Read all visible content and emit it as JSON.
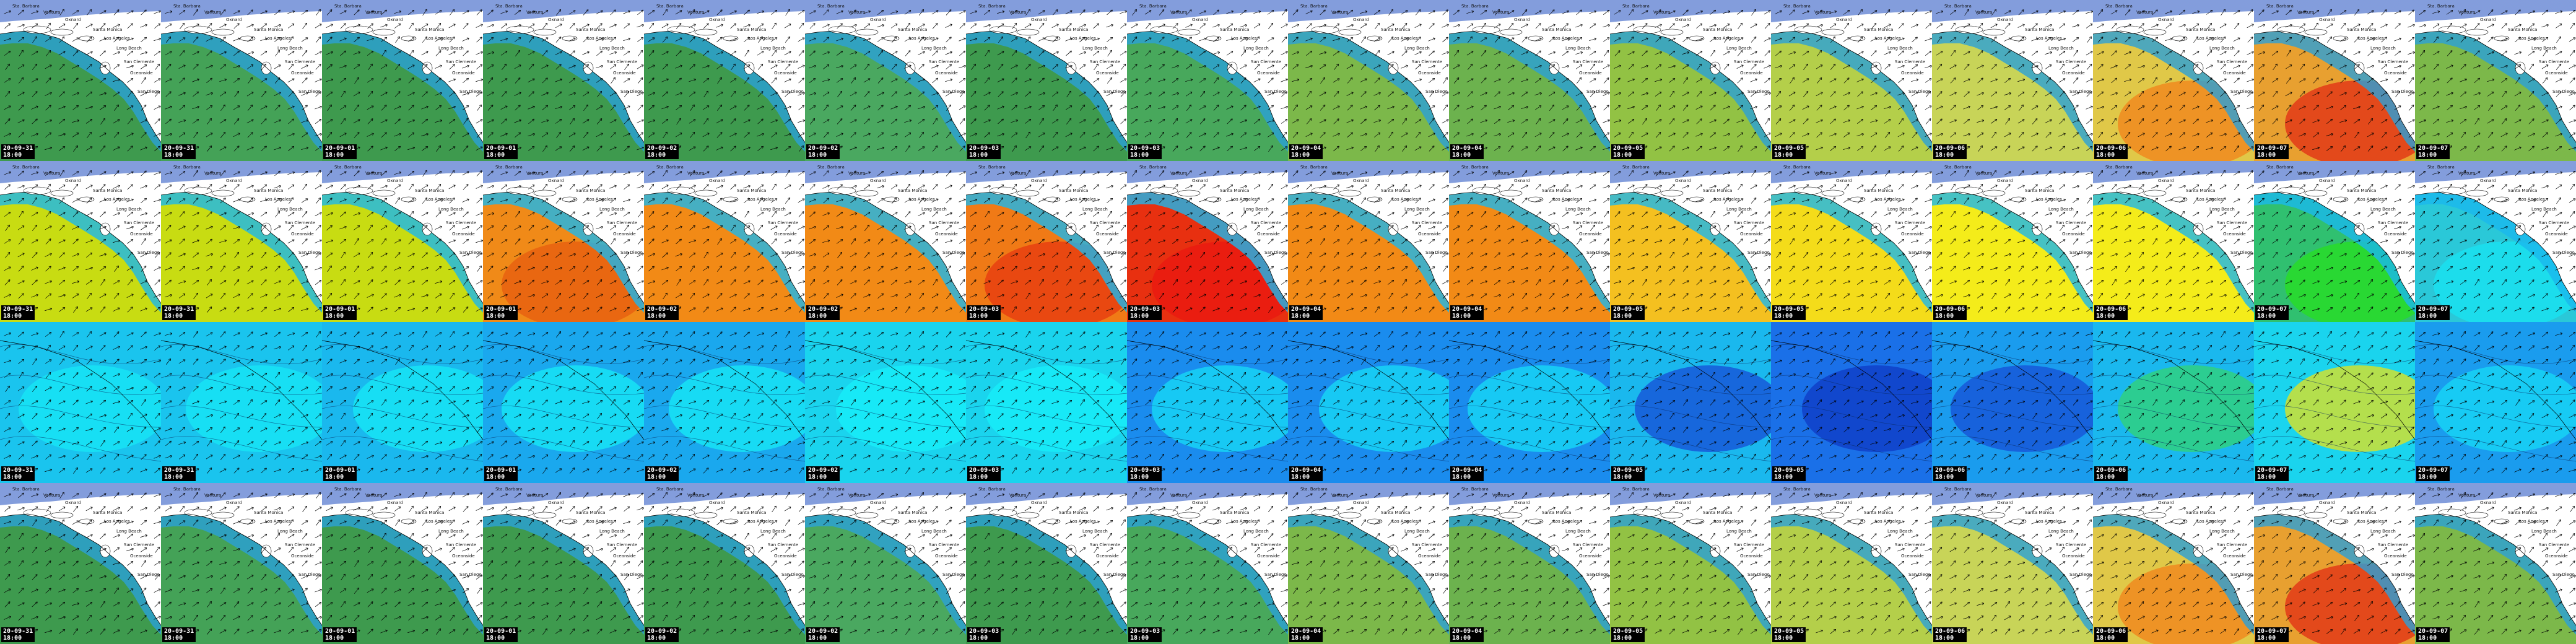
{
  "map": {
    "rows": [
      {
        "name": "row-1",
        "colors": [
          "#3e9a4e",
          "#44a257",
          "#3e9a4e",
          "#3e9a4e",
          "#3e9a4e",
          "#4aa860",
          "#3e9a4e",
          "#48a85c",
          "#7cb84a",
          "#6cb24e",
          "#92c244",
          "#b4cf4a",
          "#c8d458",
          "#e0c848",
          "#e8a030",
          "#7cb84a"
        ],
        "hot": [
          "",
          "",
          "",
          "",
          "",
          "",
          "",
          "",
          "",
          "",
          "",
          "",
          "",
          "#f08a20",
          "#e23a18",
          ""
        ]
      },
      {
        "name": "row-2",
        "colors": [
          "#c8dc12",
          "#c8dc12",
          "#c8dc12",
          "#f08a18",
          "#f28a16",
          "#f28a16",
          "#f07a16",
          "#e83010",
          "#f28a16",
          "#f28a16",
          "#f4c020",
          "#f4dc1a",
          "#f4ec1a",
          "#f4ec1a",
          "#30c070",
          "#2ac8d8"
        ],
        "hot": [
          "",
          "",
          "",
          "#e86010",
          "",
          "",
          "#e84010",
          "#ea1a10",
          "",
          "",
          "",
          "",
          "",
          "",
          "#28dc28",
          "#1ae0f0"
        ]
      },
      {
        "name": "row-3",
        "colors": [
          "#1ac4ee",
          "#1ac4ee",
          "#1ab8ee",
          "#1aa8ee",
          "#1aa8ee",
          "#1ad4ee",
          "#1ad4ee",
          "#1a8cee",
          "#1a8cee",
          "#1a8cee",
          "#1ab8ee",
          "#1a70e8",
          "#1a9cee",
          "#1ab8ee",
          "#1ad4ee",
          "#1a9cee"
        ],
        "hot": [
          "#18e4f4",
          "#18e4f4",
          "#18e4f4",
          "#18e4f4",
          "#18e4f4",
          "#18ecf8",
          "#18ecf8",
          "#18d4f4",
          "#18d4f4",
          "#18d4f4",
          "#1858d8",
          "#1040c8",
          "#1858d8",
          "#30d080",
          "#d0e030",
          "#18d4f4"
        ]
      },
      {
        "name": "row-4",
        "colors": [
          "#3e9a4e",
          "#44a257",
          "#3e9a4e",
          "#3e9a4e",
          "#3e9a4e",
          "#4aa860",
          "#3e9a4e",
          "#48a85c",
          "#7cb84a",
          "#6cb24e",
          "#92c244",
          "#b4cf4a",
          "#c8d458",
          "#e0c848",
          "#e8a030",
          "#7cb84a"
        ],
        "hot": [
          "",
          "",
          "",
          "",
          "",
          "",
          "",
          "",
          "",
          "",
          "",
          "",
          "",
          "#f08a20",
          "#e23a18",
          ""
        ]
      }
    ],
    "dates": [
      "20-09-31",
      "20-09-31",
      "20-09-01",
      "20-09-01",
      "20-09-02",
      "20-09-02",
      "20-09-03",
      "20-09-03",
      "20-09-04",
      "20-09-04",
      "20-09-05",
      "20-09-05",
      "20-09-06",
      "20-09-06",
      "20-09-07",
      "20-09-07"
    ],
    "times": [
      "18:00",
      "18:00",
      "18:00",
      "18:00",
      "18:00",
      "18:00",
      "18:00",
      "18:00",
      "18:00",
      "18:00",
      "18:00",
      "18:00",
      "18:00",
      "18:00",
      "18:00",
      "18:00"
    ],
    "places": {
      "santa_barbara": "Sta. Barbara",
      "ventura": "Ventura",
      "oxnard": "Oxnard",
      "santa_monica": "Santa Monica",
      "la": "Los Angeles",
      "long_beach": "Long Beach",
      "san_clemente": "San Clemente",
      "oceanside": "Oceanside",
      "san_diego": "San Diego",
      "point": "Pt. Conception"
    },
    "land_color": "#ffffff",
    "coast_color": "#1e4cc0"
  }
}
